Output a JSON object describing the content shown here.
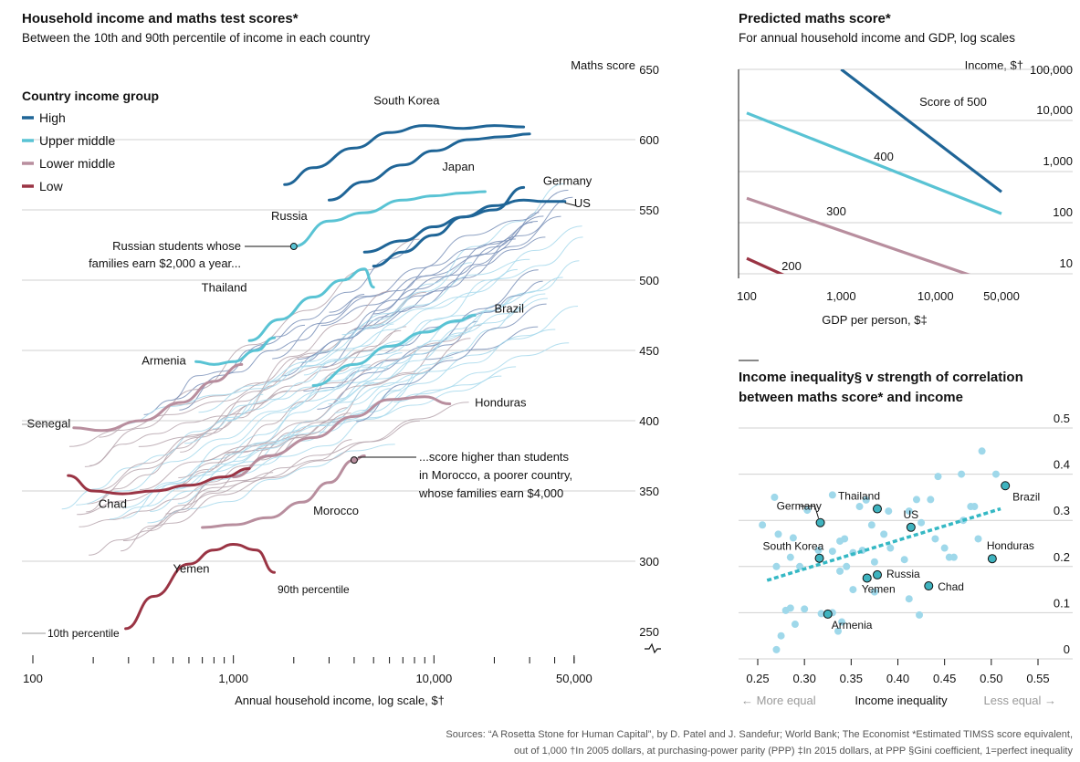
{
  "colors": {
    "high": "#1f6597",
    "upper_middle": "#59c3d4",
    "lower_middle": "#b88e9e",
    "low": "#9a3444",
    "bg_line": "#7a90b8",
    "light": "#a8d9ec",
    "dot": "#9fd8ea",
    "dot_hi": "#3fb3bf",
    "trend": "#35b8c4",
    "grid": "#d0d0d0"
  },
  "left": {
    "title": "Household income and maths test scores*",
    "subtitle": "Between the 10th and 90th percentile of income in each country",
    "legend_title": "Country income group",
    "legend": [
      {
        "label": "High",
        "color": "#1f6597"
      },
      {
        "label": "Upper middle",
        "color": "#59c3d4"
      },
      {
        "label": "Lower middle",
        "color": "#b88e9e"
      },
      {
        "label": "Low",
        "color": "#9a3444"
      }
    ],
    "y_axis_title": "Maths score",
    "annotation_russia": [
      "Russian students whose",
      "families earn $2,000 a year..."
    ],
    "annotation_morocco": [
      "...score higher than students",
      "in Morocco, a poorer country,",
      "whose families earn $4,000"
    ],
    "label_10th": "10th percentile",
    "label_90th": "90th percentile"
  },
  "right_top": {
    "title": "Predicted maths score*",
    "subtitle": "For annual household income and GDP, log scales",
    "y_axis_title": "Income, $†",
    "x_axis_title": "GDP per person, $‡"
  },
  "right_bottom": {
    "title_line1": "Income inequality§ v strength of correlation",
    "title_line2": "between maths score* and income",
    "x_axis_title": "Income inequality",
    "more_equal": "← More equal",
    "less_equal": "Less equal →"
  },
  "source_line1": "Sources: “A Rosetta Stone for Human Capital”, by D. Patel and J. Sandefur; World Bank; The Economist   *Estimated TIMSS score equivalent,",
  "source_line2": "out of 1,000   †In 2005 dollars, at purchasing-power parity (PPP)   ‡In 2015 dollars, at PPP   §Gini coefficient, 1=perfect inequality",
  "chart_data": [
    {
      "type": "line",
      "title": "Household income and maths test scores*",
      "subtitle": "Between the 10th and 90th percentile of income in each country",
      "xlabel": "Annual household income, log scale, $†",
      "ylabel": "Maths score",
      "x_scale": "log",
      "xlim": [
        100,
        100000
      ],
      "ylim": [
        250,
        650
      ],
      "x_ticks": [
        100,
        1000,
        10000,
        50000
      ],
      "x_tick_labels": [
        "100",
        "1,000",
        "10,000",
        "50,000"
      ],
      "y_ticks": [
        250,
        300,
        350,
        400,
        450,
        500,
        550,
        600,
        650
      ],
      "y_tick_labels": [
        "250",
        "300",
        "350",
        "400",
        "450",
        "500",
        "550",
        "600",
        "650"
      ],
      "grid": true,
      "legend_position": "top-left",
      "series": [
        {
          "name": "South Korea",
          "group": "High",
          "x": [
            1800,
            2500,
            4000,
            6000,
            9000,
            14000,
            20000,
            28000
          ],
          "y": [
            568,
            580,
            594,
            605,
            610,
            608,
            610,
            609
          ],
          "label_at": [
            5000,
            625
          ]
        },
        {
          "name": "Japan",
          "group": "High",
          "x": [
            3000,
            4500,
            7000,
            10000,
            15000,
            22000,
            30000
          ],
          "y": [
            557,
            570,
            582,
            592,
            600,
            602,
            604
          ],
          "label_at": [
            11000,
            578
          ]
        },
        {
          "name": "US",
          "group": "High",
          "x": [
            5000,
            7000,
            10000,
            14000,
            20000,
            28000,
            35000,
            45000
          ],
          "y": [
            510,
            520,
            532,
            545,
            553,
            557,
            556,
            556
          ],
          "label_at": [
            50000,
            552
          ]
        },
        {
          "name": "Germany",
          "group": "High",
          "x": [
            4500,
            7000,
            10000,
            14000,
            20000,
            28000
          ],
          "y": [
            520,
            528,
            538,
            545,
            550,
            566
          ],
          "label_at": [
            35000,
            568
          ]
        },
        {
          "name": "Russia",
          "group": "Upper middle",
          "x": [
            2000,
            3000,
            4500,
            7000,
            10000,
            14000,
            18000
          ],
          "y": [
            524,
            542,
            548,
            557,
            560,
            562,
            563
          ],
          "label_at": [
            1900,
            543
          ]
        },
        {
          "name": "Thailand",
          "group": "Upper middle",
          "x": [
            1200,
            1700,
            2500,
            3500,
            4500,
            5000
          ],
          "y": [
            457,
            472,
            488,
            500,
            508,
            495
          ],
          "label_at": [
            900,
            492
          ]
        },
        {
          "name": "Brazil",
          "group": "Upper middle",
          "x": [
            2500,
            4000,
            6000,
            9000,
            13000,
            16000
          ],
          "y": [
            425,
            440,
            453,
            463,
            471,
            475
          ],
          "label_at": [
            20000,
            477
          ]
        },
        {
          "name": "Armenia",
          "group": "Upper middle",
          "x": [
            650,
            800,
            1000,
            1300,
            1600
          ],
          "y": [
            442,
            440,
            442,
            450,
            459
          ],
          "label_at": [
            450,
            440
          ]
        },
        {
          "name": "Honduras",
          "group": "Lower middle",
          "x": [
            1000,
            1500,
            2500,
            4000,
            6000,
            9000,
            12000
          ],
          "y": [
            360,
            375,
            388,
            403,
            415,
            417,
            412
          ],
          "label_at": [
            16000,
            410
          ]
        },
        {
          "name": "Senegal",
          "group": "Lower middle",
          "x": [
            160,
            220,
            350,
            550,
            800,
            1100
          ],
          "y": [
            395,
            393,
            400,
            413,
            428,
            440
          ],
          "label_at": [
            120,
            395
          ]
        },
        {
          "name": "Morocco",
          "group": "Lower middle",
          "x": [
            700,
            1000,
            1500,
            2200,
            3000,
            4000,
            4500
          ],
          "y": [
            324,
            326,
            331,
            342,
            356,
            372,
            375
          ],
          "label_at": [
            2500,
            333
          ]
        },
        {
          "name": "Chad",
          "group": "Low",
          "x": [
            150,
            200,
            280,
            400,
            600,
            900,
            1200
          ],
          "y": [
            361,
            350,
            348,
            350,
            354,
            360,
            366
          ],
          "label_at": [
            250,
            338
          ]
        },
        {
          "name": "Yemen",
          "group": "Low",
          "x": [
            290,
            400,
            600,
            800,
            1000,
            1300,
            1600
          ],
          "y": [
            252,
            275,
            298,
            308,
            312,
            308,
            292
          ],
          "label_at": [
            500,
            292
          ]
        }
      ],
      "annotations": [
        {
          "text": "Russian students whose families earn $2,000 a year...",
          "x": 2000,
          "y": 524
        },
        {
          "text": "...score higher than students in Morocco, a poorer country, whose families earn $4,000",
          "x": 4000,
          "y": 372
        },
        {
          "text": "10th percentile",
          "x": 300,
          "y": 255
        },
        {
          "text": "90th percentile",
          "x": 1700,
          "y": 290
        }
      ]
    },
    {
      "type": "line",
      "title": "Predicted maths score*",
      "subtitle": "For annual household income and GDP, log scales",
      "xlabel": "GDP per person, $‡",
      "ylabel": "Income, $†",
      "x_scale": "log",
      "y_scale": "log",
      "xlim": [
        100,
        50000
      ],
      "ylim": [
        10,
        100000
      ],
      "x_ticks": [
        100,
        1000,
        10000,
        50000
      ],
      "x_tick_labels": [
        "100",
        "1,000",
        "10,000",
        "50,000"
      ],
      "y_ticks": [
        10,
        100,
        1000,
        10000,
        100000
      ],
      "y_tick_labels": [
        "10",
        "100",
        "1,000",
        "10,000",
        "100,000"
      ],
      "series": [
        {
          "name": "Score of 500",
          "x": [
            1000,
            50000
          ],
          "y": [
            100000,
            400
          ],
          "color": "#1f6597"
        },
        {
          "name": "400",
          "x": [
            100,
            50000
          ],
          "y": [
            14000,
            150
          ],
          "color": "#59c3d4"
        },
        {
          "name": "300",
          "x": [
            100,
            30000
          ],
          "y": [
            300,
            8
          ],
          "color": "#b88e9e"
        },
        {
          "name": "200",
          "x": [
            100,
            300
          ],
          "y": [
            20,
            8
          ],
          "color": "#9a3444"
        }
      ]
    },
    {
      "type": "scatter",
      "title": "Income inequality§ v strength of correlation between maths score* and income",
      "xlabel": "Income inequality",
      "xlim": [
        0.25,
        0.55
      ],
      "ylim": [
        0,
        0.5
      ],
      "x_ticks": [
        0.25,
        0.3,
        0.35,
        0.4,
        0.45,
        0.5,
        0.55
      ],
      "x_tick_labels": [
        "0.25",
        "0.30",
        "0.35",
        "0.40",
        "0.45",
        "0.50",
        "0.55"
      ],
      "y_ticks": [
        0,
        0.1,
        0.2,
        0.3,
        0.4,
        0.5
      ],
      "y_tick_labels": [
        "0",
        "0.1",
        "0.2",
        "0.3",
        "0.4",
        "0.5"
      ],
      "highlighted": [
        {
          "name": "Brazil",
          "x": 0.515,
          "y": 0.375
        },
        {
          "name": "Thailand",
          "x": 0.378,
          "y": 0.325
        },
        {
          "name": "Germany",
          "x": 0.317,
          "y": 0.295
        },
        {
          "name": "US",
          "x": 0.414,
          "y": 0.285
        },
        {
          "name": "Honduras",
          "x": 0.501,
          "y": 0.217
        },
        {
          "name": "South Korea",
          "x": 0.316,
          "y": 0.218
        },
        {
          "name": "Russia",
          "x": 0.378,
          "y": 0.182
        },
        {
          "name": "Yemen",
          "x": 0.367,
          "y": 0.175
        },
        {
          "name": "Chad",
          "x": 0.433,
          "y": 0.158
        },
        {
          "name": "Armenia",
          "x": 0.325,
          "y": 0.097
        }
      ],
      "points": [
        [
          0.27,
          0.02
        ],
        [
          0.275,
          0.05
        ],
        [
          0.29,
          0.075
        ],
        [
          0.28,
          0.105
        ],
        [
          0.285,
          0.11
        ],
        [
          0.3,
          0.108
        ],
        [
          0.318,
          0.098
        ],
        [
          0.336,
          0.06
        ],
        [
          0.255,
          0.29
        ],
        [
          0.268,
          0.35
        ],
        [
          0.272,
          0.27
        ],
        [
          0.288,
          0.262
        ],
        [
          0.303,
          0.322
        ],
        [
          0.33,
          0.355
        ],
        [
          0.359,
          0.33
        ],
        [
          0.366,
          0.344
        ],
        [
          0.27,
          0.2
        ],
        [
          0.285,
          0.22
        ],
        [
          0.295,
          0.2
        ],
        [
          0.315,
          0.235
        ],
        [
          0.33,
          0.233
        ],
        [
          0.338,
          0.255
        ],
        [
          0.343,
          0.26
        ],
        [
          0.338,
          0.19
        ],
        [
          0.345,
          0.2
        ],
        [
          0.352,
          0.23
        ],
        [
          0.362,
          0.235
        ],
        [
          0.372,
          0.29
        ],
        [
          0.385,
          0.27
        ],
        [
          0.39,
          0.32
        ],
        [
          0.392,
          0.24
        ],
        [
          0.407,
          0.215
        ],
        [
          0.412,
          0.32
        ],
        [
          0.425,
          0.295
        ],
        [
          0.44,
          0.26
        ],
        [
          0.45,
          0.24
        ],
        [
          0.455,
          0.22
        ],
        [
          0.46,
          0.22
        ],
        [
          0.47,
          0.3
        ],
        [
          0.478,
          0.33
        ],
        [
          0.482,
          0.33
        ],
        [
          0.486,
          0.26
        ],
        [
          0.49,
          0.45
        ],
        [
          0.505,
          0.4
        ],
        [
          0.468,
          0.4
        ],
        [
          0.443,
          0.395
        ],
        [
          0.435,
          0.345
        ],
        [
          0.42,
          0.345
        ],
        [
          0.33,
          0.1
        ],
        [
          0.34,
          0.08
        ],
        [
          0.352,
          0.15
        ],
        [
          0.375,
          0.21
        ],
        [
          0.412,
          0.13
        ],
        [
          0.423,
          0.095
        ],
        [
          0.375,
          0.145
        ]
      ],
      "trend": {
        "x": [
          0.26,
          0.51
        ],
        "y": [
          0.17,
          0.325
        ]
      },
      "annotations": [
        "← More equal",
        "Less equal →"
      ]
    }
  ]
}
